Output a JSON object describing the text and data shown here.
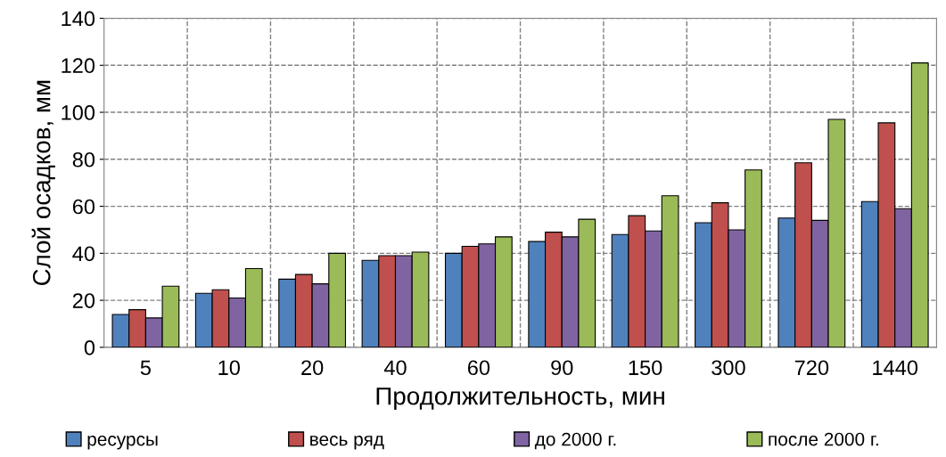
{
  "chart_data": {
    "type": "bar",
    "xlabel": "Продолжительность, мин",
    "ylabel": "Слой осадков, мм",
    "categories": [
      "5",
      "10",
      "20",
      "40",
      "60",
      "90",
      "150",
      "300",
      "720",
      "1440"
    ],
    "series": [
      {
        "name": "ресурсы",
        "color": "#4f81bd",
        "values": [
          14,
          23,
          29,
          37,
          40,
          45,
          48,
          53,
          55,
          62
        ]
      },
      {
        "name": "весь ряд",
        "color": "#c0504d",
        "values": [
          16,
          24.5,
          31,
          39,
          43,
          49,
          56,
          61.5,
          78.5,
          95.5
        ]
      },
      {
        "name": "до 2000 г.",
        "color": "#8064a2",
        "values": [
          12.5,
          21,
          27,
          39,
          44,
          47,
          49.5,
          50,
          54,
          59
        ]
      },
      {
        "name": "после 2000 г.",
        "color": "#9bbb59",
        "values": [
          26,
          33.5,
          40,
          40.5,
          47,
          54.5,
          64.5,
          75.5,
          97,
          121
        ]
      }
    ],
    "ylim": [
      0,
      140
    ],
    "yticks": [
      0,
      20,
      40,
      60,
      80,
      100,
      120,
      140
    ],
    "grid": true,
    "legend": "bottom"
  }
}
